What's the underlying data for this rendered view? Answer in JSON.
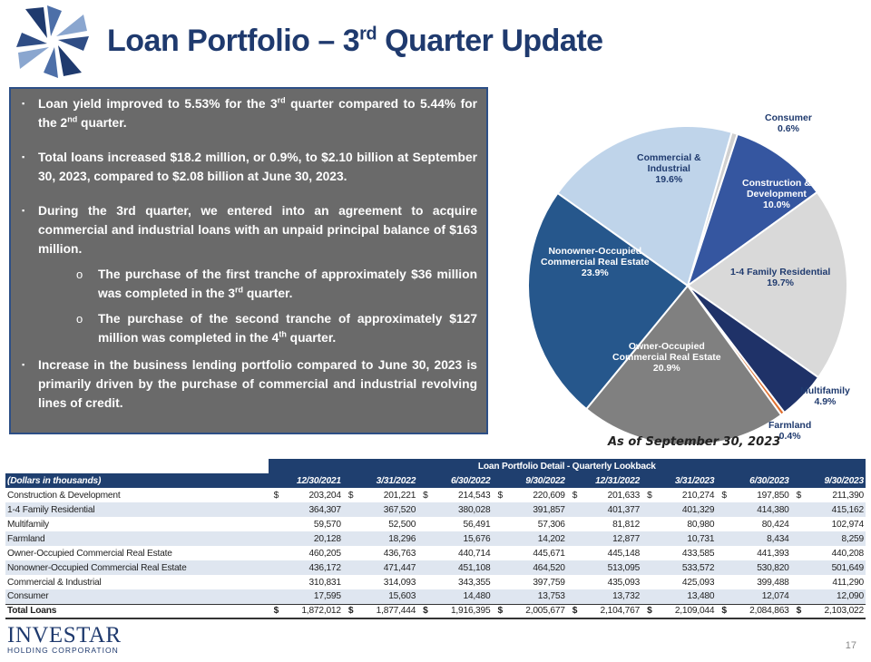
{
  "header": {
    "title_main": "Loan Portfolio – 3",
    "title_sup": "rd",
    "title_end": " Quarter Update"
  },
  "bullets": {
    "b1": [
      "Loan yield improved to 5.53% for the 3",
      "rd",
      " quarter compared to 5.44% for the 2",
      "nd",
      " quarter."
    ],
    "b2": "Total loans increased $18.2 million, or 0.9%, to $2.10 billion at September 30, 2023, compared to $2.08 billion at June 30, 2023.",
    "b3": "During the 3rd quarter, we entered into an agreement to acquire commercial and industrial loans with an unpaid principal balance of $163 million.",
    "s1": [
      "The purchase of the first tranche of approximately $36 million was completed in the 3",
      "rd",
      " quarter."
    ],
    "s2": [
      "The purchase of the second tranche of approximately $127 million was completed in the 4",
      "th",
      " quarter."
    ],
    "b4": "Increase in the business lending portfolio compared to June 30, 2023 is primarily driven by the purchase of commercial and industrial revolving lines of credit.",
    "bullet_glyph": "▪",
    "sub_glyph": "o"
  },
  "chart_data": {
    "type": "pie",
    "title": "As of September 30, 2023",
    "slices": [
      {
        "name": "Consumer",
        "value": 0.6,
        "label": "0.6%",
        "color": "#d0d0d0"
      },
      {
        "name": "Construction & Development",
        "value": 10.0,
        "label": "10.0%",
        "color": "#3556a0"
      },
      {
        "name": "1-4 Family Residential",
        "value": 19.7,
        "label": "19.7%",
        "color": "#d9d9d9"
      },
      {
        "name": "Multifamily",
        "value": 4.9,
        "label": "4.9%",
        "color": "#1f3268"
      },
      {
        "name": "Farmland",
        "value": 0.4,
        "label": "0.4%",
        "color": "#e07030"
      },
      {
        "name": "Owner-Occupied Commercial Real Estate",
        "value": 20.9,
        "label": "20.9%",
        "color": "#808080"
      },
      {
        "name": "Nonowner-Occupied Commercial Real Estate",
        "value": 23.9,
        "label": "23.9%",
        "color": "#26578c"
      },
      {
        "name": "Commercial & Industrial",
        "value": 19.6,
        "label": "19.6%",
        "color": "#bfd4ea"
      }
    ],
    "label_text": {
      "consumer": [
        "Consumer",
        "0.6%"
      ],
      "construction": [
        "Construction &",
        "Development",
        "10.0%"
      ],
      "family": [
        "1-4 Family Residential",
        "19.7%"
      ],
      "multifamily": [
        "Multifamily",
        "4.9%"
      ],
      "farmland": [
        "Farmland",
        "0.4%"
      ],
      "owner": [
        "Owner-Occupied",
        "Commercial Real Estate",
        "20.9%"
      ],
      "nonowner": [
        "Nonowner-Occupied",
        "Commercial Real Estate",
        "23.9%"
      ],
      "ci": [
        "Commercial &",
        "Industrial",
        "19.6%"
      ]
    }
  },
  "table": {
    "title": "Loan Portfolio Detail - Quarterly Lookback",
    "first_header": "(Dollars in thousands)",
    "columns": [
      "12/30/2021",
      "3/31/2022",
      "6/30/2022",
      "9/30/2022",
      "12/31/2022",
      "3/31/2023",
      "6/30/2023",
      "9/30/2023"
    ],
    "rows": [
      {
        "label": "Construction & Development",
        "cur": "$",
        "values": [
          "203,204",
          "201,221",
          "214,543",
          "220,609",
          "201,633",
          "210,274",
          "197,850",
          "211,390"
        ]
      },
      {
        "label": "1-4 Family Residential",
        "cur": "",
        "values": [
          "364,307",
          "367,520",
          "380,028",
          "391,857",
          "401,377",
          "401,329",
          "414,380",
          "415,162"
        ]
      },
      {
        "label": "Multifamily",
        "cur": "",
        "values": [
          "59,570",
          "52,500",
          "56,491",
          "57,306",
          "81,812",
          "80,980",
          "80,424",
          "102,974"
        ]
      },
      {
        "label": "Farmland",
        "cur": "",
        "values": [
          "20,128",
          "18,296",
          "15,676",
          "14,202",
          "12,877",
          "10,731",
          "8,434",
          "8,259"
        ]
      },
      {
        "label": "Owner-Occupied Commercial Real Estate",
        "cur": "",
        "values": [
          "460,205",
          "436,763",
          "440,714",
          "445,671",
          "445,148",
          "433,585",
          "441,393",
          "440,208"
        ]
      },
      {
        "label": "Nonowner-Occupied Commercial Real Estate",
        "cur": "",
        "values": [
          "436,172",
          "471,447",
          "451,108",
          "464,520",
          "513,095",
          "533,572",
          "530,820",
          "501,649"
        ]
      },
      {
        "label": "Commercial & Industrial",
        "cur": "",
        "values": [
          "310,831",
          "314,093",
          "343,355",
          "397,759",
          "435,093",
          "425,093",
          "399,488",
          "411,290"
        ]
      },
      {
        "label": "Consumer",
        "cur": "",
        "values": [
          "17,595",
          "15,603",
          "14,480",
          "13,753",
          "13,732",
          "13,480",
          "12,074",
          "12,090"
        ]
      }
    ],
    "total": {
      "label": "Total Loans",
      "cur": "$",
      "values": [
        "1,872,012",
        "1,877,444",
        "1,916,395",
        "2,005,677",
        "2,104,767",
        "2,109,044",
        "2,084,863",
        "2,103,022"
      ]
    }
  },
  "footer": {
    "brand_name": "INVESTAR",
    "brand_sub": "HOLDING CORPORATION",
    "page_number": "17"
  }
}
